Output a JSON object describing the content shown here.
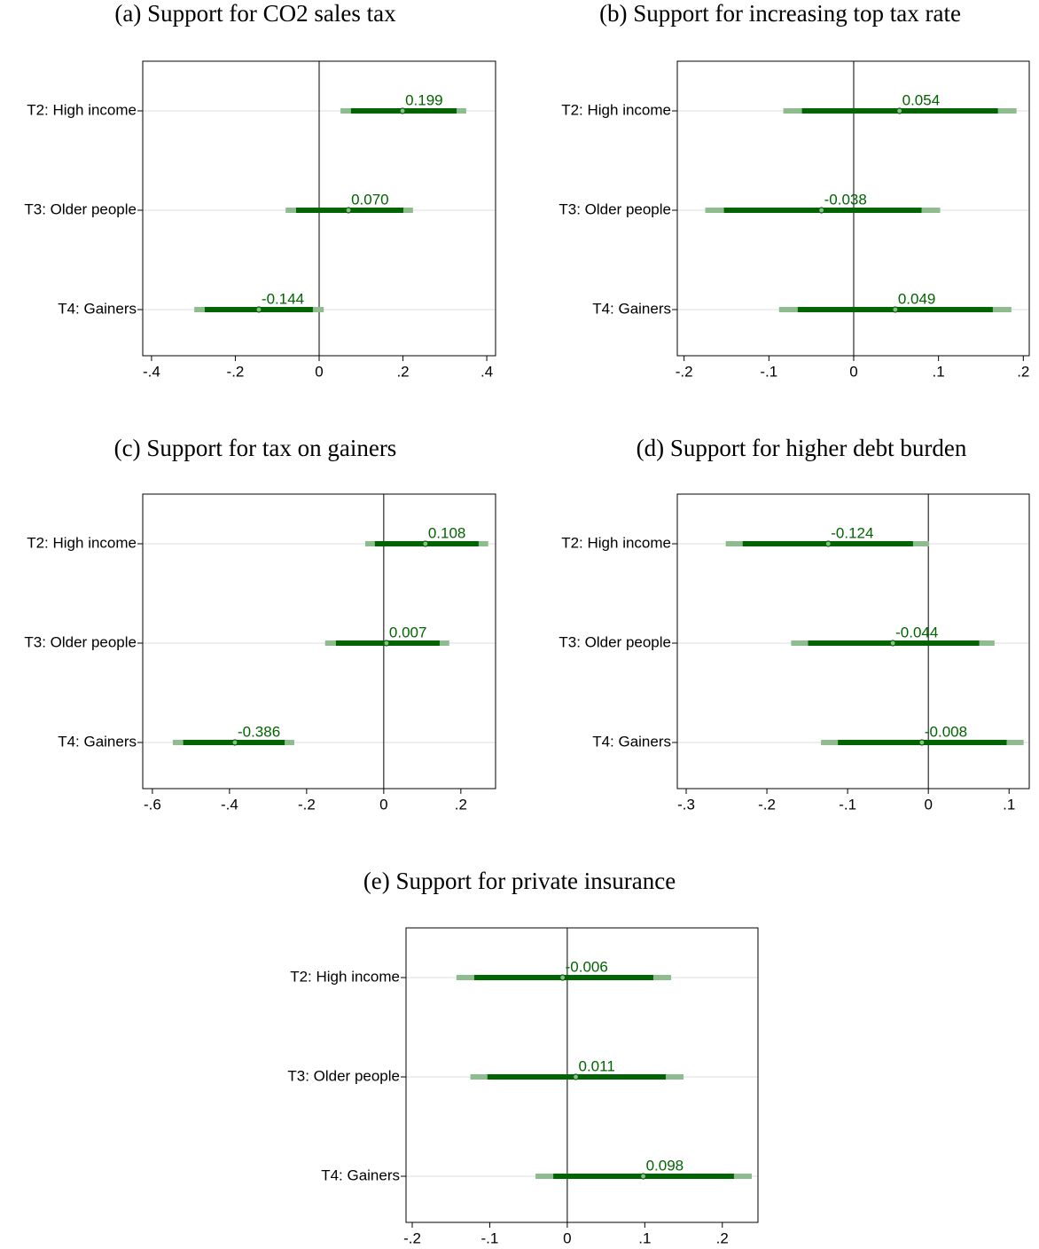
{
  "chart_data": [
    {
      "type": "coefplot",
      "title": "(a) Support for CO2 sales tax",
      "categories": [
        "T2: High income",
        "T3: Older people",
        "T4: Gainers"
      ],
      "values": [
        0.199,
        0.07,
        -0.144
      ],
      "value_labels": [
        "0.199",
        "0.070",
        "-0.144"
      ],
      "ci95_low": [
        0.051,
        -0.08,
        -0.298
      ],
      "ci95_high": [
        0.351,
        0.224,
        0.011
      ],
      "ci90_low": [
        0.076,
        -0.055,
        -0.273
      ],
      "ci90_high": [
        0.328,
        0.201,
        -0.015
      ],
      "xlim": [
        -0.421,
        0.421
      ],
      "xticks": [
        {
          "value": -0.4,
          "label": "-.4"
        },
        {
          "value": -0.2,
          "label": "-.2"
        },
        0,
        {
          "value": 0.2,
          "label": ".2"
        },
        {
          "value": 0.4,
          "label": ".4"
        }
      ],
      "color": "#006400",
      "ci95_color": "#8fbc8f",
      "grid": true,
      "zero_line": true
    },
    {
      "type": "coefplot",
      "title": "(b) Support for increasing top tax rate",
      "categories": [
        "T2: High income",
        "T3: Older people",
        "T4: Gainers"
      ],
      "values": [
        0.054,
        -0.038,
        0.049
      ],
      "value_labels": [
        "0.054",
        "-0.038",
        "0.049"
      ],
      "ci95_low": [
        -0.083,
        -0.175,
        -0.088
      ],
      "ci95_high": [
        0.192,
        0.102,
        0.186
      ],
      "ci90_low": [
        -0.061,
        -0.153,
        -0.066
      ],
      "ci90_high": [
        0.17,
        0.08,
        0.164
      ],
      "xlim": [
        -0.208,
        0.207
      ],
      "xticks": [
        {
          "value": -0.2,
          "label": "-.2"
        },
        {
          "value": -0.1,
          "label": "-.1"
        },
        0,
        {
          "value": 0.1,
          "label": ".1"
        },
        {
          "value": 0.2,
          "label": ".2"
        }
      ],
      "color": "#006400",
      "ci95_color": "#8fbc8f",
      "grid": true,
      "zero_line": true
    },
    {
      "type": "coefplot",
      "title": "(c) Support for tax on gainers",
      "categories": [
        "T2: High income",
        "T3: Older people",
        "T4: Gainers"
      ],
      "values": [
        0.108,
        0.007,
        -0.386
      ],
      "value_labels": [
        "0.108",
        "0.007",
        "-0.386"
      ],
      "ci95_low": [
        -0.048,
        -0.152,
        -0.547
      ],
      "ci95_high": [
        0.271,
        0.17,
        -0.232
      ],
      "ci90_low": [
        -0.023,
        -0.124,
        -0.52
      ],
      "ci90_high": [
        0.246,
        0.145,
        -0.257
      ],
      "xlim": [
        -0.625,
        0.29
      ],
      "xticks": [
        {
          "value": -0.6,
          "label": "-.6"
        },
        {
          "value": -0.4,
          "label": "-.4"
        },
        {
          "value": -0.2,
          "label": "-.2"
        },
        0,
        {
          "value": 0.2,
          "label": ".2"
        }
      ],
      "color": "#006400",
      "ci95_color": "#8fbc8f",
      "grid": true,
      "zero_line": true
    },
    {
      "type": "coefplot",
      "title": "(d) Support for higher debt burden",
      "categories": [
        "T2: High income",
        "T3: Older people",
        "T4: Gainers"
      ],
      "values": [
        -0.124,
        -0.044,
        -0.008
      ],
      "value_labels": [
        "-0.124",
        "-0.044",
        "-0.008"
      ],
      "ci95_low": [
        -0.251,
        -0.17,
        -0.133
      ],
      "ci95_high": [
        0.001,
        0.082,
        0.118
      ],
      "ci90_low": [
        -0.23,
        -0.149,
        -0.112
      ],
      "ci90_high": [
        -0.019,
        0.063,
        0.097
      ],
      "xlim": [
        -0.311,
        0.125
      ],
      "xticks": [
        {
          "value": -0.3,
          "label": "-.3"
        },
        {
          "value": -0.2,
          "label": "-.2"
        },
        {
          "value": -0.1,
          "label": "-.1"
        },
        0,
        {
          "value": 0.1,
          "label": ".1"
        }
      ],
      "color": "#006400",
      "ci95_color": "#8fbc8f",
      "grid": true,
      "zero_line": true
    },
    {
      "type": "coefplot",
      "title": "(e) Support for private insurance",
      "categories": [
        "T2: High income",
        "T3: Older people",
        "T4: Gainers"
      ],
      "values": [
        -0.006,
        0.011,
        0.098
      ],
      "value_labels": [
        "-0.006",
        "0.011",
        "0.098"
      ],
      "ci95_low": [
        -0.143,
        -0.125,
        -0.041
      ],
      "ci95_high": [
        0.134,
        0.15,
        0.238
      ],
      "ci90_low": [
        -0.12,
        -0.103,
        -0.018
      ],
      "ci90_high": [
        0.111,
        0.127,
        0.215
      ],
      "xlim": [
        -0.208,
        0.246
      ],
      "xticks": [
        {
          "value": -0.2,
          "label": "-.2"
        },
        {
          "value": -0.1,
          "label": "-.1"
        },
        0,
        {
          "value": 0.1,
          "label": ".1"
        },
        {
          "value": 0.2,
          "label": ".2"
        }
      ],
      "color": "#006400",
      "ci95_color": "#8fbc8f",
      "grid": true,
      "zero_line": true
    }
  ]
}
